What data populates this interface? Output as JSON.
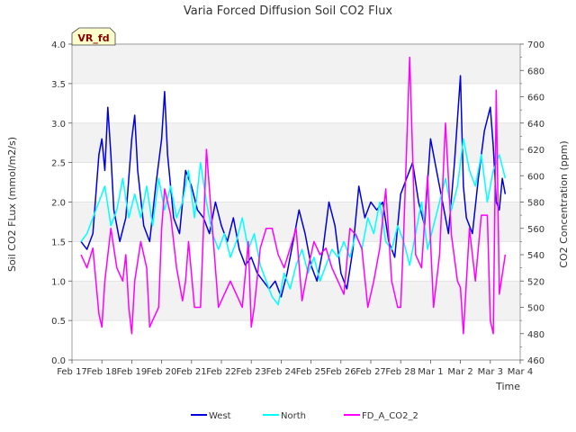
{
  "chart_data": {
    "type": "line",
    "title": "Varia Forced Diffusion Soil CO2 Flux",
    "xlabel": "Time",
    "ylabel": "Soil CO2 FLux (mmol/m2/s)",
    "y2label": "CO2 Concentration (ppm)",
    "annotation": "VR_fd",
    "x_ticks": [
      "Feb 17",
      "Feb 18",
      "Feb 19",
      "Feb 20",
      "Feb 21",
      "Feb 22",
      "Feb 23",
      "Feb 24",
      "Feb 25",
      "Feb 26",
      "Feb 27",
      "Feb 28",
      "Mar 1",
      "Mar 2",
      "Mar 3",
      "Mar 4"
    ],
    "xlim": [
      0,
      15
    ],
    "ylim": [
      0.0,
      4.0
    ],
    "y_ticks": [
      "0.0",
      "0.5",
      "1.0",
      "1.5",
      "2.0",
      "2.5",
      "3.0",
      "3.5",
      "4.0"
    ],
    "y2lim": [
      460,
      700
    ],
    "y2_ticks": [
      "460",
      "480",
      "500",
      "520",
      "540",
      "560",
      "580",
      "600",
      "620",
      "640",
      "660",
      "680",
      "700"
    ],
    "grid": true,
    "legend_position": "bottom-center",
    "series": [
      {
        "name": "West",
        "axis": "left",
        "color": "#0000dd",
        "x": [
          0.3,
          0.5,
          0.7,
          0.9,
          1.0,
          1.1,
          1.2,
          1.3,
          1.4,
          1.6,
          1.8,
          2.0,
          2.1,
          2.2,
          2.4,
          2.6,
          2.8,
          3.0,
          3.1,
          3.2,
          3.4,
          3.6,
          3.8,
          4.0,
          4.2,
          4.4,
          4.6,
          4.8,
          5.0,
          5.2,
          5.4,
          5.6,
          5.8,
          6.0,
          6.2,
          6.4,
          6.6,
          6.8,
          7.0,
          7.2,
          7.4,
          7.6,
          7.8,
          8.0,
          8.2,
          8.4,
          8.6,
          8.8,
          9.0,
          9.2,
          9.4,
          9.6,
          9.8,
          10.0,
          10.2,
          10.4,
          10.6,
          10.8,
          11.0,
          11.2,
          11.4,
          11.6,
          11.8,
          12.0,
          12.2,
          12.4,
          12.6,
          12.8,
          13.0,
          13.1,
          13.2,
          13.4,
          13.6,
          13.8,
          14.0,
          14.1,
          14.2,
          14.3,
          14.4,
          14.5
        ],
        "values": [
          1.5,
          1.4,
          1.6,
          2.6,
          2.8,
          2.4,
          3.2,
          2.6,
          1.9,
          1.5,
          1.8,
          2.8,
          3.1,
          2.4,
          1.7,
          1.5,
          2.2,
          2.8,
          3.4,
          2.6,
          1.8,
          1.6,
          2.4,
          2.2,
          1.9,
          1.8,
          1.6,
          2.0,
          1.7,
          1.5,
          1.8,
          1.4,
          1.2,
          1.3,
          1.1,
          1.0,
          0.9,
          1.0,
          0.8,
          1.1,
          1.5,
          1.9,
          1.6,
          1.2,
          1.0,
          1.4,
          2.0,
          1.7,
          1.1,
          0.9,
          1.4,
          2.2,
          1.8,
          2.0,
          1.9,
          2.0,
          1.5,
          1.3,
          2.1,
          2.3,
          2.5,
          2.0,
          1.7,
          2.8,
          2.4,
          2.0,
          1.6,
          2.5,
          3.6,
          2.2,
          1.8,
          1.6,
          2.3,
          2.9,
          3.2,
          2.7,
          2.0,
          1.9,
          2.3,
          2.1
        ]
      },
      {
        "name": "North",
        "axis": "left",
        "color": "#00ffff",
        "x": [
          0.3,
          0.5,
          0.7,
          0.9,
          1.1,
          1.3,
          1.5,
          1.7,
          1.9,
          2.1,
          2.3,
          2.5,
          2.7,
          2.9,
          3.1,
          3.3,
          3.5,
          3.7,
          3.9,
          4.1,
          4.3,
          4.5,
          4.7,
          4.9,
          5.1,
          5.3,
          5.5,
          5.7,
          5.9,
          6.1,
          6.3,
          6.5,
          6.7,
          6.9,
          7.1,
          7.3,
          7.5,
          7.7,
          7.9,
          8.1,
          8.3,
          8.5,
          8.7,
          8.9,
          9.1,
          9.3,
          9.5,
          9.7,
          9.9,
          10.1,
          10.3,
          10.5,
          10.7,
          10.9,
          11.1,
          11.3,
          11.5,
          11.7,
          11.9,
          12.1,
          12.3,
          12.5,
          12.7,
          12.9,
          13.1,
          13.3,
          13.5,
          13.7,
          13.9,
          14.1,
          14.3,
          14.5
        ],
        "values": [
          1.5,
          1.6,
          1.8,
          2.0,
          2.2,
          1.7,
          1.9,
          2.3,
          1.8,
          2.1,
          1.8,
          2.2,
          1.7,
          2.3,
          1.9,
          2.2,
          1.8,
          2.0,
          2.4,
          1.8,
          2.5,
          2.0,
          1.6,
          1.4,
          1.6,
          1.3,
          1.5,
          1.8,
          1.4,
          1.6,
          1.2,
          1.0,
          0.8,
          0.7,
          1.1,
          0.9,
          1.2,
          1.4,
          1.1,
          1.3,
          1.0,
          1.2,
          1.4,
          1.3,
          1.5,
          1.3,
          1.6,
          1.4,
          1.8,
          1.6,
          2.0,
          1.5,
          1.4,
          1.7,
          1.5,
          1.2,
          1.6,
          2.0,
          1.4,
          1.7,
          2.0,
          2.3,
          1.9,
          2.2,
          2.8,
          2.4,
          2.2,
          2.6,
          2.0,
          2.4,
          2.6,
          2.3
        ]
      },
      {
        "name": "FD_A_CO2_2",
        "axis": "right",
        "color": "#ff00ff",
        "x": [
          0.3,
          0.5,
          0.7,
          0.9,
          1.0,
          1.1,
          1.3,
          1.5,
          1.7,
          1.8,
          1.9,
          2.0,
          2.1,
          2.3,
          2.5,
          2.6,
          2.7,
          2.9,
          3.0,
          3.1,
          3.3,
          3.5,
          3.7,
          3.8,
          3.9,
          4.1,
          4.3,
          4.5,
          4.6,
          4.7,
          4.9,
          5.1,
          5.3,
          5.5,
          5.7,
          5.9,
          6.0,
          6.1,
          6.3,
          6.5,
          6.7,
          6.9,
          7.1,
          7.3,
          7.5,
          7.7,
          7.9,
          8.1,
          8.3,
          8.5,
          8.7,
          8.9,
          9.1,
          9.3,
          9.5,
          9.7,
          9.9,
          10.1,
          10.3,
          10.5,
          10.7,
          10.9,
          11.0,
          11.1,
          11.3,
          11.5,
          11.7,
          11.9,
          12.1,
          12.3,
          12.5,
          12.7,
          12.9,
          13.0,
          13.1,
          13.3,
          13.5,
          13.7,
          13.9,
          14.0,
          14.1,
          14.2,
          14.3,
          14.5
        ],
        "values": [
          540,
          530,
          545,
          495,
          485,
          520,
          560,
          530,
          520,
          540,
          500,
          480,
          520,
          550,
          530,
          485,
          490,
          500,
          560,
          590,
          570,
          530,
          505,
          520,
          550,
          500,
          500,
          620,
          590,
          560,
          500,
          510,
          520,
          510,
          500,
          550,
          485,
          500,
          545,
          560,
          560,
          540,
          530,
          545,
          560,
          505,
          530,
          550,
          540,
          545,
          530,
          520,
          510,
          560,
          555,
          545,
          500,
          520,
          545,
          590,
          520,
          500,
          500,
          555,
          690,
          540,
          530,
          600,
          500,
          540,
          640,
          555,
          520,
          515,
          480,
          560,
          520,
          570,
          570,
          490,
          480,
          665,
          510,
          540
        ]
      }
    ]
  }
}
